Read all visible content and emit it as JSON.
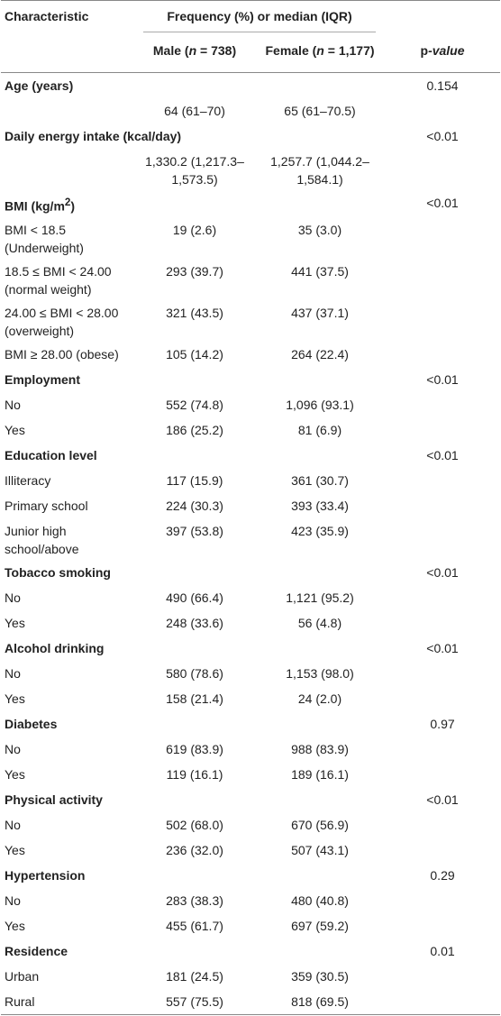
{
  "header": {
    "characteristic": "Characteristic",
    "group": "Frequency (%) or median (IQR)",
    "male": [
      "Male (",
      "n",
      " = 738)"
    ],
    "female": [
      "Female (",
      "n",
      " = 1,177)"
    ],
    "p_value": [
      "p",
      "-value"
    ]
  },
  "sections": [
    {
      "title": [
        "Age (years)"
      ],
      "p_value": "0.154",
      "rows": [
        {
          "male": "64 (61–70)",
          "female": "65 (61–70.5)"
        }
      ]
    },
    {
      "title": [
        "Daily energy intake (kcal/day)"
      ],
      "p_value": "<0.01",
      "rows": [
        {
          "male": "1,330.2 (1,217.3–1,573.5)",
          "female": "1,257.7 (1,044.2–1,584.1)"
        }
      ]
    },
    {
      "title": [
        "BMI (kg/m",
        "2",
        ")"
      ],
      "p_value": "<0.01",
      "rows": [
        {
          "label": "BMI < 18.5 (Underweight)",
          "male": "19 (2.6)",
          "female": "35 (3.0)"
        },
        {
          "label": "18.5 ≤ BMI < 24.00 (normal weight)",
          "male": "293 (39.7)",
          "female": "441 (37.5)"
        },
        {
          "label": "24.00 ≤ BMI < 28.00 (overweight)",
          "male": "321 (43.5)",
          "female": "437 (37.1)"
        },
        {
          "label": "BMI ≥ 28.00 (obese)",
          "male": "105 (14.2)",
          "female": "264 (22.4)"
        }
      ]
    },
    {
      "title": [
        "Employment"
      ],
      "p_value": "<0.01",
      "rows": [
        {
          "label": "No",
          "male": "552 (74.8)",
          "female": "1,096 (93.1)"
        },
        {
          "label": "Yes",
          "male": "186 (25.2)",
          "female": "81 (6.9)"
        }
      ]
    },
    {
      "title": [
        "Education level"
      ],
      "p_value": "<0.01",
      "rows": [
        {
          "label": "Illiteracy",
          "male": "117 (15.9)",
          "female": "361 (30.7)"
        },
        {
          "label": "Primary school",
          "male": "224 (30.3)",
          "female": "393 (33.4)"
        },
        {
          "label": "Junior high school/above",
          "male": "397 (53.8)",
          "female": "423 (35.9)"
        }
      ]
    },
    {
      "title": [
        "Tobacco smoking"
      ],
      "p_value": "<0.01",
      "rows": [
        {
          "label": "No",
          "male": "490 (66.4)",
          "female": "1,121 (95.2)"
        },
        {
          "label": "Yes",
          "male": "248 (33.6)",
          "female": "56 (4.8)"
        }
      ]
    },
    {
      "title": [
        "Alcohol drinking"
      ],
      "p_value": "<0.01",
      "rows": [
        {
          "label": "No",
          "male": "580 (78.6)",
          "female": "1,153 (98.0)"
        },
        {
          "label": "Yes",
          "male": "158 (21.4)",
          "female": "24 (2.0)"
        }
      ]
    },
    {
      "title": [
        "Diabetes"
      ],
      "p_value": "0.97",
      "rows": [
        {
          "label": "No",
          "male": "619 (83.9)",
          "female": "988 (83.9)"
        },
        {
          "label": "Yes",
          "male": "119 (16.1)",
          "female": "189 (16.1)"
        }
      ]
    },
    {
      "title": [
        "Physical activity"
      ],
      "p_value": "<0.01",
      "rows": [
        {
          "label": "No",
          "male": "502 (68.0)",
          "female": "670 (56.9)"
        },
        {
          "label": "Yes",
          "male": "236 (32.0)",
          "female": "507 (43.1)"
        }
      ]
    },
    {
      "title": [
        "Hypertension"
      ],
      "p_value": "0.29",
      "rows": [
        {
          "label": "No",
          "male": "283 (38.3)",
          "female": "480 (40.8)"
        },
        {
          "label": "Yes",
          "male": "455 (61.7)",
          "female": "697 (59.2)"
        }
      ]
    },
    {
      "title": [
        "Residence"
      ],
      "p_value": "0.01",
      "rows": [
        {
          "label": "Urban",
          "male": "181 (24.5)",
          "female": "359 (30.5)"
        },
        {
          "label": "Rural",
          "male": "557 (75.5)",
          "female": "818 (69.5)"
        }
      ]
    }
  ]
}
